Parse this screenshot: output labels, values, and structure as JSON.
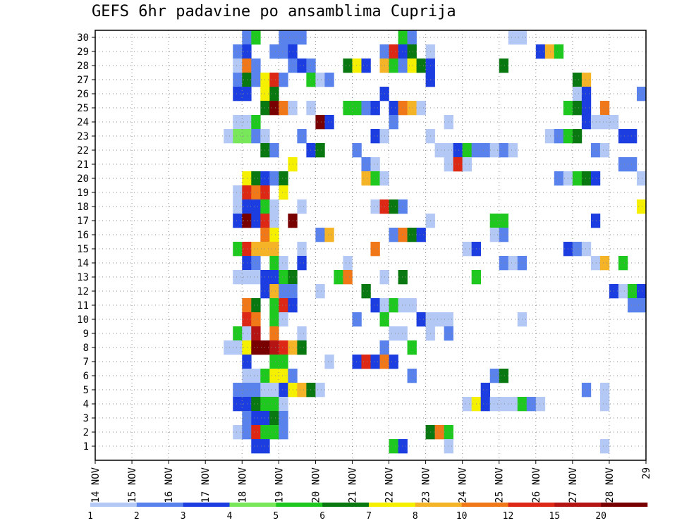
{
  "title": "GEFS 6hr padavine po ansamblima Cuprija",
  "chart_data": {
    "type": "heatmap",
    "title": "GEFS 6hr padavine po ansamblima Cuprija",
    "xlabel": "",
    "ylabel": "",
    "x_ticks": [
      "14 NOV",
      "15 NOV",
      "16 NOV",
      "17 NOV",
      "18 NOV",
      "19 NOV",
      "20 NOV",
      "21 NOV",
      "22 NOV",
      "23 NOV",
      "24 NOV",
      "25 NOV",
      "26 NOV",
      "27 NOV",
      "28 NOV",
      "29"
    ],
    "xlim": [
      0,
      60
    ],
    "ylim": [
      0,
      30
    ],
    "y_ticks": [
      1,
      2,
      3,
      4,
      5,
      6,
      7,
      8,
      9,
      10,
      11,
      12,
      13,
      14,
      15,
      16,
      17,
      18,
      19,
      20,
      21,
      22,
      23,
      24,
      25,
      26,
      27,
      28,
      29,
      30
    ],
    "colorbar": {
      "levels": [
        1,
        2,
        3,
        4,
        5,
        6,
        7,
        8,
        10,
        12,
        15,
        20
      ],
      "labels": [
        "1",
        "2",
        "3",
        "4",
        "5",
        "6",
        "7",
        "8",
        "10",
        "12",
        "15",
        "20"
      ],
      "colors": [
        "#b4c8f5",
        "#5a82ec",
        "#1c3ee0",
        "#78e85a",
        "#1ec81e",
        "#0a7810",
        "#f5f000",
        "#f5b428",
        "#f07818",
        "#dc2814",
        "#b41414",
        "#780000"
      ]
    },
    "cells_note": "Each cell = [member_row, time_step_6h_from_14NOV00, class_index (0..11 = levels 1..20)]",
    "cells": [
      [
        30,
        16,
        1
      ],
      [
        30,
        17,
        4
      ],
      [
        30,
        20,
        1
      ],
      [
        30,
        21,
        1
      ],
      [
        30,
        22,
        1
      ],
      [
        30,
        33,
        4
      ],
      [
        30,
        34,
        1
      ],
      [
        30,
        45,
        0
      ],
      [
        30,
        46,
        0
      ],
      [
        29,
        15,
        1
      ],
      [
        29,
        16,
        2
      ],
      [
        29,
        19,
        1
      ],
      [
        29,
        20,
        1
      ],
      [
        29,
        21,
        2
      ],
      [
        29,
        31,
        1
      ],
      [
        29,
        32,
        9
      ],
      [
        29,
        33,
        2
      ],
      [
        29,
        34,
        5
      ],
      [
        29,
        36,
        0
      ],
      [
        29,
        48,
        2
      ],
      [
        29,
        49,
        7
      ],
      [
        29,
        50,
        4
      ],
      [
        28,
        15,
        0
      ],
      [
        28,
        16,
        8
      ],
      [
        28,
        17,
        1
      ],
      [
        28,
        21,
        1
      ],
      [
        28,
        22,
        2
      ],
      [
        28,
        23,
        1
      ],
      [
        28,
        27,
        5
      ],
      [
        28,
        28,
        6
      ],
      [
        28,
        29,
        2
      ],
      [
        28,
        31,
        7
      ],
      [
        28,
        32,
        4
      ],
      [
        28,
        33,
        1
      ],
      [
        28,
        34,
        6
      ],
      [
        28,
        35,
        5
      ],
      [
        28,
        36,
        2
      ],
      [
        28,
        44,
        5
      ],
      [
        27,
        15,
        1
      ],
      [
        27,
        16,
        5
      ],
      [
        27,
        17,
        1
      ],
      [
        27,
        18,
        6
      ],
      [
        27,
        19,
        9
      ],
      [
        27,
        20,
        1
      ],
      [
        27,
        23,
        4
      ],
      [
        27,
        24,
        0
      ],
      [
        27,
        25,
        1
      ],
      [
        27,
        36,
        2
      ],
      [
        27,
        52,
        5
      ],
      [
        27,
        53,
        7
      ],
      [
        26,
        15,
        2
      ],
      [
        26,
        16,
        2
      ],
      [
        26,
        18,
        6
      ],
      [
        26,
        19,
        5
      ],
      [
        26,
        31,
        2
      ],
      [
        26,
        52,
        0
      ],
      [
        26,
        53,
        2
      ],
      [
        26,
        59,
        1
      ],
      [
        25,
        18,
        5
      ],
      [
        25,
        19,
        11
      ],
      [
        25,
        20,
        8
      ],
      [
        25,
        21,
        0
      ],
      [
        25,
        23,
        0
      ],
      [
        25,
        27,
        4
      ],
      [
        25,
        28,
        4
      ],
      [
        25,
        29,
        1
      ],
      [
        25,
        30,
        2
      ],
      [
        25,
        32,
        2
      ],
      [
        25,
        33,
        8
      ],
      [
        25,
        34,
        7
      ],
      [
        25,
        35,
        0
      ],
      [
        25,
        51,
        4
      ],
      [
        25,
        52,
        5
      ],
      [
        25,
        53,
        2
      ],
      [
        25,
        55,
        8
      ],
      [
        24,
        15,
        0
      ],
      [
        24,
        16,
        0
      ],
      [
        24,
        17,
        4
      ],
      [
        24,
        24,
        11
      ],
      [
        24,
        25,
        2
      ],
      [
        24,
        32,
        1
      ],
      [
        24,
        38,
        0
      ],
      [
        24,
        53,
        2
      ],
      [
        24,
        54,
        0
      ],
      [
        24,
        55,
        0
      ],
      [
        24,
        56,
        0
      ],
      [
        23,
        14,
        0
      ],
      [
        23,
        15,
        3
      ],
      [
        23,
        16,
        3
      ],
      [
        23,
        17,
        1
      ],
      [
        23,
        18,
        0
      ],
      [
        23,
        22,
        1
      ],
      [
        23,
        30,
        2
      ],
      [
        23,
        31,
        0
      ],
      [
        23,
        36,
        0
      ],
      [
        23,
        49,
        0
      ],
      [
        23,
        50,
        1
      ],
      [
        23,
        51,
        4
      ],
      [
        23,
        52,
        5
      ],
      [
        23,
        57,
        2
      ],
      [
        23,
        58,
        2
      ],
      [
        22,
        18,
        5
      ],
      [
        22,
        19,
        1
      ],
      [
        22,
        23,
        2
      ],
      [
        22,
        24,
        5
      ],
      [
        22,
        28,
        1
      ],
      [
        22,
        37,
        0
      ],
      [
        22,
        38,
        0
      ],
      [
        22,
        39,
        2
      ],
      [
        22,
        40,
        4
      ],
      [
        22,
        41,
        1
      ],
      [
        22,
        42,
        1
      ],
      [
        22,
        43,
        0
      ],
      [
        22,
        44,
        1
      ],
      [
        22,
        45,
        0
      ],
      [
        22,
        54,
        1
      ],
      [
        22,
        55,
        0
      ],
      [
        21,
        21,
        6
      ],
      [
        21,
        29,
        1
      ],
      [
        21,
        30,
        0
      ],
      [
        21,
        38,
        0
      ],
      [
        21,
        39,
        9
      ],
      [
        21,
        40,
        0
      ],
      [
        21,
        57,
        1
      ],
      [
        21,
        58,
        1
      ],
      [
        20,
        16,
        6
      ],
      [
        20,
        17,
        5
      ],
      [
        20,
        18,
        2
      ],
      [
        20,
        19,
        1
      ],
      [
        20,
        20,
        5
      ],
      [
        20,
        29,
        7
      ],
      [
        20,
        30,
        4
      ],
      [
        20,
        31,
        0
      ],
      [
        20,
        50,
        1
      ],
      [
        20,
        51,
        0
      ],
      [
        20,
        52,
        4
      ],
      [
        20,
        53,
        5
      ],
      [
        20,
        54,
        2
      ],
      [
        20,
        59,
        0
      ],
      [
        19,
        15,
        0
      ],
      [
        19,
        16,
        9
      ],
      [
        19,
        17,
        8
      ],
      [
        19,
        18,
        9
      ],
      [
        19,
        20,
        6
      ],
      [
        18,
        15,
        0
      ],
      [
        18,
        16,
        2
      ],
      [
        18,
        17,
        2
      ],
      [
        18,
        18,
        4
      ],
      [
        18,
        19,
        0
      ],
      [
        18,
        22,
        0
      ],
      [
        18,
        30,
        0
      ],
      [
        18,
        31,
        9
      ],
      [
        18,
        32,
        5
      ],
      [
        18,
        33,
        1
      ],
      [
        18,
        59,
        6
      ],
      [
        17,
        15,
        2
      ],
      [
        17,
        16,
        11
      ],
      [
        17,
        17,
        2
      ],
      [
        17,
        18,
        9
      ],
      [
        17,
        19,
        0
      ],
      [
        17,
        21,
        11
      ],
      [
        17,
        36,
        0
      ],
      [
        17,
        43,
        4
      ],
      [
        17,
        44,
        4
      ],
      [
        17,
        54,
        2
      ],
      [
        16,
        18,
        8
      ],
      [
        16,
        19,
        6
      ],
      [
        16,
        24,
        1
      ],
      [
        16,
        25,
        7
      ],
      [
        16,
        32,
        1
      ],
      [
        16,
        33,
        8
      ],
      [
        16,
        34,
        5
      ],
      [
        16,
        35,
        2
      ],
      [
        16,
        43,
        0
      ],
      [
        16,
        44,
        1
      ],
      [
        15,
        15,
        4
      ],
      [
        15,
        16,
        9
      ],
      [
        15,
        17,
        7
      ],
      [
        15,
        18,
        7
      ],
      [
        15,
        19,
        7
      ],
      [
        15,
        22,
        0
      ],
      [
        15,
        30,
        8
      ],
      [
        15,
        40,
        0
      ],
      [
        15,
        41,
        2
      ],
      [
        15,
        51,
        2
      ],
      [
        15,
        52,
        1
      ],
      [
        15,
        53,
        0
      ],
      [
        14,
        16,
        2
      ],
      [
        14,
        17,
        1
      ],
      [
        14,
        19,
        4
      ],
      [
        14,
        20,
        0
      ],
      [
        14,
        22,
        2
      ],
      [
        14,
        27,
        0
      ],
      [
        14,
        44,
        1
      ],
      [
        14,
        45,
        0
      ],
      [
        14,
        46,
        1
      ],
      [
        14,
        54,
        0
      ],
      [
        14,
        55,
        7
      ],
      [
        14,
        57,
        4
      ],
      [
        13,
        15,
        0
      ],
      [
        13,
        16,
        0
      ],
      [
        13,
        17,
        0
      ],
      [
        13,
        18,
        2
      ],
      [
        13,
        19,
        2
      ],
      [
        13,
        20,
        4
      ],
      [
        13,
        21,
        5
      ],
      [
        13,
        26,
        4
      ],
      [
        13,
        27,
        8
      ],
      [
        13,
        31,
        0
      ],
      [
        13,
        33,
        5
      ],
      [
        13,
        41,
        4
      ],
      [
        12,
        18,
        2
      ],
      [
        12,
        19,
        7
      ],
      [
        12,
        20,
        1
      ],
      [
        12,
        21,
        1
      ],
      [
        12,
        24,
        0
      ],
      [
        12,
        29,
        5
      ],
      [
        12,
        56,
        2
      ],
      [
        12,
        57,
        0
      ],
      [
        12,
        58,
        4
      ],
      [
        12,
        59,
        2
      ],
      [
        11,
        16,
        8
      ],
      [
        11,
        17,
        5
      ],
      [
        11,
        19,
        4
      ],
      [
        11,
        20,
        9
      ],
      [
        11,
        21,
        2
      ],
      [
        11,
        30,
        2
      ],
      [
        11,
        31,
        0
      ],
      [
        11,
        32,
        4
      ],
      [
        11,
        33,
        0
      ],
      [
        11,
        34,
        0
      ],
      [
        11,
        58,
        1
      ],
      [
        11,
        59,
        1
      ],
      [
        10,
        16,
        9
      ],
      [
        10,
        17,
        8
      ],
      [
        10,
        19,
        4
      ],
      [
        10,
        20,
        0
      ],
      [
        10,
        28,
        1
      ],
      [
        10,
        31,
        4
      ],
      [
        10,
        35,
        2
      ],
      [
        10,
        36,
        0
      ],
      [
        10,
        37,
        0
      ],
      [
        10,
        38,
        0
      ],
      [
        10,
        46,
        0
      ],
      [
        9,
        15,
        4
      ],
      [
        9,
        16,
        0
      ],
      [
        9,
        17,
        10
      ],
      [
        9,
        19,
        8
      ],
      [
        9,
        22,
        0
      ],
      [
        9,
        32,
        0
      ],
      [
        9,
        33,
        0
      ],
      [
        9,
        36,
        0
      ],
      [
        9,
        38,
        1
      ],
      [
        8,
        14,
        0
      ],
      [
        8,
        15,
        0
      ],
      [
        8,
        16,
        6
      ],
      [
        8,
        17,
        11
      ],
      [
        8,
        18,
        11
      ],
      [
        8,
        19,
        10
      ],
      [
        8,
        20,
        9
      ],
      [
        8,
        21,
        7
      ],
      [
        8,
        22,
        5
      ],
      [
        8,
        31,
        1
      ],
      [
        8,
        34,
        4
      ],
      [
        7,
        16,
        2
      ],
      [
        7,
        19,
        4
      ],
      [
        7,
        20,
        4
      ],
      [
        7,
        25,
        0
      ],
      [
        7,
        28,
        2
      ],
      [
        7,
        29,
        9
      ],
      [
        7,
        30,
        2
      ],
      [
        7,
        31,
        8
      ],
      [
        7,
        32,
        2
      ],
      [
        6,
        16,
        0
      ],
      [
        6,
        17,
        0
      ],
      [
        6,
        18,
        4
      ],
      [
        6,
        19,
        6
      ],
      [
        6,
        20,
        6
      ],
      [
        6,
        21,
        1
      ],
      [
        6,
        34,
        1
      ],
      [
        6,
        43,
        1
      ],
      [
        6,
        44,
        5
      ],
      [
        5,
        15,
        1
      ],
      [
        5,
        16,
        1
      ],
      [
        5,
        17,
        1
      ],
      [
        5,
        18,
        0
      ],
      [
        5,
        19,
        0
      ],
      [
        5,
        20,
        2
      ],
      [
        5,
        21,
        6
      ],
      [
        5,
        22,
        7
      ],
      [
        5,
        23,
        5
      ],
      [
        5,
        24,
        0
      ],
      [
        5,
        42,
        2
      ],
      [
        5,
        53,
        1
      ],
      [
        5,
        55,
        0
      ],
      [
        4,
        15,
        2
      ],
      [
        4,
        16,
        2
      ],
      [
        4,
        17,
        5
      ],
      [
        4,
        18,
        4
      ],
      [
        4,
        19,
        4
      ],
      [
        4,
        20,
        0
      ],
      [
        4,
        40,
        0
      ],
      [
        4,
        41,
        6
      ],
      [
        4,
        42,
        2
      ],
      [
        4,
        43,
        0
      ],
      [
        4,
        44,
        0
      ],
      [
        4,
        45,
        0
      ],
      [
        4,
        46,
        4
      ],
      [
        4,
        47,
        1
      ],
      [
        4,
        48,
        0
      ],
      [
        4,
        55,
        0
      ],
      [
        3,
        16,
        1
      ],
      [
        3,
        17,
        2
      ],
      [
        3,
        18,
        2
      ],
      [
        3,
        19,
        5
      ],
      [
        3,
        20,
        1
      ],
      [
        2,
        15,
        0
      ],
      [
        2,
        16,
        1
      ],
      [
        2,
        17,
        9
      ],
      [
        2,
        18,
        4
      ],
      [
        2,
        19,
        4
      ],
      [
        2,
        20,
        1
      ],
      [
        2,
        36,
        5
      ],
      [
        2,
        37,
        8
      ],
      [
        2,
        38,
        4
      ],
      [
        1,
        17,
        2
      ],
      [
        1,
        18,
        2
      ],
      [
        1,
        32,
        4
      ],
      [
        1,
        33,
        2
      ],
      [
        1,
        38,
        0
      ],
      [
        1,
        55,
        0
      ]
    ]
  }
}
